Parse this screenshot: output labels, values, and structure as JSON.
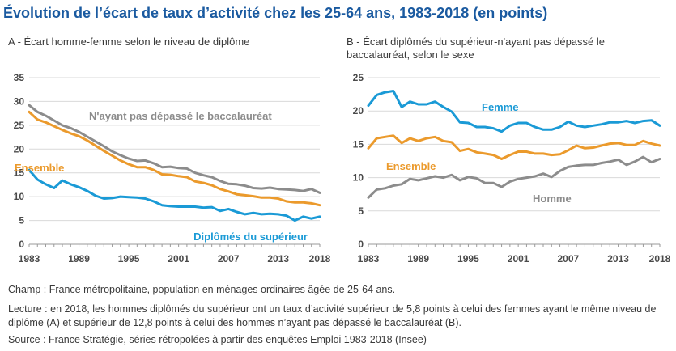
{
  "title": "Évolution de l’écart de taux d’activité chez les 25-64 ans, 1983-2018 (en points)",
  "chart_data": [
    {
      "type": "line",
      "id": "A",
      "title": "A - Écart homme-femme selon le niveau de diplôme",
      "ylim": [
        0,
        35
      ],
      "yticks": [
        0,
        5,
        10,
        15,
        20,
        25,
        30,
        35
      ],
      "xlim": [
        1983,
        2018
      ],
      "xticks": [
        1983,
        1989,
        1995,
        2001,
        2007,
        2013,
        2018
      ],
      "x": [
        1983,
        1984,
        1985,
        1986,
        1987,
        1988,
        1989,
        1990,
        1991,
        1992,
        1993,
        1994,
        1995,
        1996,
        1997,
        1998,
        1999,
        2000,
        2001,
        2002,
        2003,
        2004,
        2005,
        2006,
        2007,
        2008,
        2009,
        2010,
        2011,
        2012,
        2013,
        2014,
        2015,
        2016,
        2017,
        2018
      ],
      "series": [
        {
          "name": "N'ayant pas dépassé le baccalauréat",
          "color": "#8c8c8c",
          "values": [
            29.2,
            27.8,
            27.0,
            26.0,
            25.0,
            24.4,
            23.6,
            22.6,
            21.6,
            20.6,
            19.5,
            18.7,
            18.0,
            17.5,
            17.6,
            17.0,
            16.2,
            16.3,
            16.0,
            15.9,
            15.0,
            14.5,
            14.1,
            13.3,
            12.7,
            12.6,
            12.3,
            11.8,
            11.7,
            11.9,
            11.6,
            11.5,
            11.4,
            11.2,
            11.6,
            10.8
          ]
        },
        {
          "name": "Ensemble",
          "color": "#eb9a2c",
          "values": [
            27.8,
            26.2,
            25.6,
            24.8,
            24.0,
            23.3,
            22.7,
            21.8,
            20.7,
            19.6,
            18.6,
            17.6,
            16.8,
            16.2,
            16.2,
            15.6,
            14.7,
            14.6,
            14.3,
            14.1,
            13.2,
            12.9,
            12.4,
            11.6,
            11.1,
            10.5,
            10.3,
            10.1,
            9.8,
            9.8,
            9.6,
            9.0,
            8.8,
            8.8,
            8.6,
            8.2
          ]
        },
        {
          "name": "Diplômés du supérieur",
          "color": "#1a9ad6",
          "values": [
            15.6,
            13.6,
            12.6,
            11.8,
            13.4,
            12.6,
            12.0,
            11.2,
            10.2,
            9.6,
            9.7,
            10.0,
            9.9,
            9.8,
            9.6,
            9.0,
            8.2,
            8.0,
            7.9,
            7.9,
            7.9,
            7.7,
            7.8,
            7.0,
            7.4,
            6.8,
            6.3,
            6.6,
            6.3,
            6.4,
            6.3,
            6.0,
            5.0,
            5.8,
            5.4,
            5.8
          ]
        }
      ],
      "labels": [
        "N'ayant pas dépassé le baccalauréat",
        "Ensemble",
        "Diplômés du supérieur"
      ]
    },
    {
      "type": "line",
      "id": "B",
      "title": "B - Écart diplômés du supérieur-n'ayant pas dépassé le baccalauréat, selon le sexe",
      "ylim": [
        0,
        25
      ],
      "yticks": [
        0,
        5,
        10,
        15,
        20,
        25
      ],
      "xlim": [
        1983,
        2018
      ],
      "xticks": [
        1983,
        1989,
        1995,
        2001,
        2007,
        2013,
        2018
      ],
      "x": [
        1983,
        1984,
        1985,
        1986,
        1987,
        1988,
        1989,
        1990,
        1991,
        1992,
        1993,
        1994,
        1995,
        1996,
        1997,
        1998,
        1999,
        2000,
        2001,
        2002,
        2003,
        2004,
        2005,
        2006,
        2007,
        2008,
        2009,
        2010,
        2011,
        2012,
        2013,
        2014,
        2015,
        2016,
        2017,
        2018
      ],
      "series": [
        {
          "name": "Femme",
          "color": "#1a9ad6",
          "values": [
            20.8,
            22.4,
            22.8,
            23.0,
            20.6,
            21.4,
            21.0,
            21.0,
            21.4,
            20.6,
            19.9,
            18.3,
            18.2,
            17.6,
            17.6,
            17.4,
            16.9,
            17.8,
            18.2,
            18.2,
            17.6,
            17.2,
            17.2,
            17.6,
            18.4,
            17.8,
            17.6,
            17.8,
            18.0,
            18.3,
            18.3,
            18.5,
            18.2,
            18.5,
            18.6,
            17.8
          ]
        },
        {
          "name": "Ensemble",
          "color": "#eb9a2c",
          "values": [
            14.4,
            15.9,
            16.1,
            16.3,
            15.2,
            15.9,
            15.5,
            15.9,
            16.1,
            15.5,
            15.3,
            14.0,
            14.3,
            13.8,
            13.6,
            13.4,
            12.8,
            13.4,
            13.9,
            13.9,
            13.6,
            13.6,
            13.4,
            13.5,
            14.1,
            14.8,
            14.4,
            14.5,
            14.8,
            15.1,
            15.2,
            14.9,
            14.9,
            15.5,
            15.1,
            14.8
          ]
        },
        {
          "name": "Homme",
          "color": "#8c8c8c",
          "values": [
            7.0,
            8.2,
            8.4,
            8.8,
            9.0,
            9.8,
            9.6,
            9.9,
            10.2,
            10.0,
            10.4,
            9.6,
            10.1,
            9.9,
            9.2,
            9.2,
            8.6,
            9.4,
            9.8,
            10.0,
            10.2,
            10.6,
            10.1,
            11.0,
            11.6,
            11.8,
            11.9,
            11.9,
            12.2,
            12.4,
            12.7,
            11.9,
            12.4,
            13.1,
            12.3,
            12.8
          ]
        }
      ],
      "labels": [
        "Femme",
        "Ensemble",
        "Homme"
      ]
    }
  ],
  "notes": {
    "champ": "Champ : France métropolitaine, population en ménages ordinaires âgée de 25-64 ans.",
    "lecture": "Lecture : en 2018, les hommes diplômés du supérieur ont un taux d’activité supérieur de 5,8 points à celui des femmes ayant le même niveau de diplôme (A) et supérieur de 12,8 points à celui des hommes n’ayant pas dépassé le baccalauréat (B).",
    "source": "Source : France Stratégie, séries rétropolées à partir des enquêtes Emploi 1983-2018 (Insee)"
  }
}
